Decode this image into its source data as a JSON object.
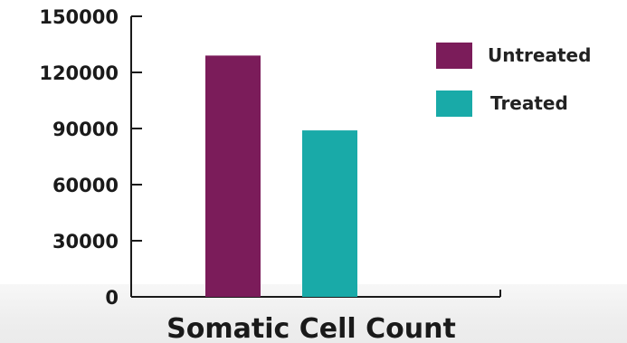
{
  "chart_data": {
    "type": "bar",
    "xlabel": "Somatic Cell Count",
    "ylabel": "",
    "ylim": [
      0,
      150000
    ],
    "yticks": [
      "0",
      "30000",
      "60000",
      "90000",
      "120000",
      "150000"
    ],
    "series": [
      {
        "name": "Untreated",
        "value": 129000,
        "color": "#7b1c5a"
      },
      {
        "name": "Treated",
        "value": 89000,
        "color": "#19aaa8"
      }
    ],
    "legend_position": "top-right",
    "grid": false
  }
}
